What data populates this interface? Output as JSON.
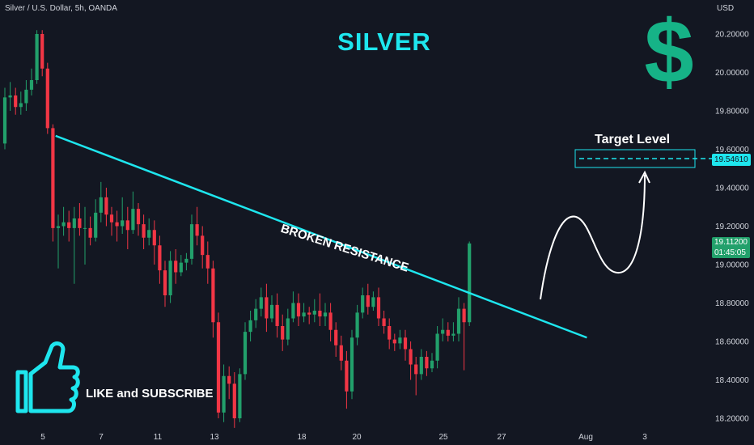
{
  "header": {
    "symbol": "Silver / U.S. Dollar, 5h, OANDA",
    "currency": "USD"
  },
  "title": "SILVER",
  "dollar_sign": "$",
  "annotations": {
    "target_label": "Target Level",
    "resistance_label": "BROKEN RESISTANCE",
    "like_label": "LIKE and SUBSCRIBE"
  },
  "price_tags": {
    "target": "19.54610",
    "last_price": "19.11200",
    "countdown": "01:45:05"
  },
  "colors": {
    "background": "#131722",
    "bull": "#22a06b",
    "bear": "#f23645",
    "accent": "#1ee6ee",
    "dollar": "#16b387"
  },
  "chart_data": {
    "type": "candlestick",
    "ylim": [
      18.15,
      20.27
    ],
    "y_ticks": [
      "20.20000",
      "20.00000",
      "19.80000",
      "19.60000",
      "19.40000",
      "19.20000",
      "19.00000",
      "18.80000",
      "18.60000",
      "18.40000",
      "18.20000"
    ],
    "x_ticks": [
      "5",
      "7",
      "11",
      "13",
      "18",
      "20",
      "25",
      "27",
      "Aug",
      "3"
    ],
    "grid": false,
    "candles": [
      [
        19.63,
        19.87,
        19.92,
        19.6
      ],
      [
        19.87,
        19.88,
        19.95,
        19.8
      ],
      [
        19.88,
        19.82,
        19.92,
        19.78
      ],
      [
        19.82,
        19.84,
        19.9,
        19.78
      ],
      [
        19.84,
        19.91,
        19.96,
        19.8
      ],
      [
        19.91,
        19.96,
        20.02,
        19.88
      ],
      [
        19.96,
        20.2,
        20.22,
        19.94
      ],
      [
        20.2,
        20.02,
        20.22,
        19.98
      ],
      [
        20.02,
        19.71,
        20.05,
        19.68
      ],
      [
        19.71,
        19.19,
        19.73,
        19.12
      ],
      [
        19.19,
        19.2,
        19.26,
        18.98
      ],
      [
        19.2,
        19.22,
        19.3,
        19.15
      ],
      [
        19.22,
        19.19,
        19.28,
        19.12
      ],
      [
        19.19,
        19.24,
        19.3,
        18.9
      ],
      [
        19.24,
        19.19,
        19.32,
        19.15
      ],
      [
        19.19,
        19.19,
        19.3,
        19.0
      ],
      [
        19.19,
        19.14,
        19.25,
        19.1
      ],
      [
        19.14,
        19.27,
        19.34,
        19.12
      ],
      [
        19.27,
        19.35,
        19.43,
        19.22
      ],
      [
        19.35,
        19.26,
        19.4,
        19.2
      ],
      [
        19.26,
        19.22,
        19.3,
        19.15
      ],
      [
        19.22,
        19.2,
        19.28,
        19.12
      ],
      [
        19.2,
        19.23,
        19.35,
        19.16
      ],
      [
        19.23,
        19.18,
        19.3,
        19.08
      ],
      [
        19.18,
        19.29,
        19.38,
        19.16
      ],
      [
        19.29,
        19.21,
        19.32,
        19.15
      ],
      [
        19.21,
        19.14,
        19.26,
        19.08
      ],
      [
        19.14,
        19.18,
        19.24,
        19.1
      ],
      [
        19.18,
        19.1,
        19.23,
        19.0
      ],
      [
        19.1,
        18.97,
        19.15,
        18.9
      ],
      [
        18.97,
        18.84,
        19.02,
        18.78
      ],
      [
        18.84,
        19.02,
        19.07,
        18.8
      ],
      [
        19.02,
        18.96,
        19.08,
        18.9
      ],
      [
        18.96,
        19.01,
        19.05,
        18.94
      ],
      [
        19.01,
        19.03,
        19.06,
        18.97
      ],
      [
        19.03,
        19.21,
        19.26,
        19.0
      ],
      [
        19.21,
        19.15,
        19.3,
        19.1
      ],
      [
        19.15,
        19.05,
        19.2,
        18.98
      ],
      [
        19.05,
        18.98,
        19.12,
        18.9
      ],
      [
        18.98,
        18.7,
        19.02,
        18.62
      ],
      [
        18.7,
        18.23,
        18.75,
        18.2
      ],
      [
        18.23,
        18.42,
        18.48,
        18.18
      ],
      [
        18.42,
        18.38,
        18.47,
        18.3
      ],
      [
        18.38,
        18.2,
        18.44,
        18.15
      ],
      [
        18.2,
        18.43,
        18.46,
        18.18
      ],
      [
        18.43,
        18.65,
        18.7,
        18.4
      ],
      [
        18.65,
        18.71,
        18.76,
        18.6
      ],
      [
        18.71,
        18.77,
        18.82,
        18.67
      ],
      [
        18.77,
        18.83,
        18.88,
        18.73
      ],
      [
        18.83,
        18.72,
        18.9,
        18.65
      ],
      [
        18.72,
        18.79,
        18.84,
        18.7
      ],
      [
        18.79,
        18.68,
        18.85,
        18.62
      ],
      [
        18.68,
        18.61,
        18.74,
        18.55
      ],
      [
        18.61,
        18.72,
        18.77,
        18.58
      ],
      [
        18.72,
        18.8,
        18.86,
        18.7
      ],
      [
        18.8,
        18.73,
        18.85,
        18.68
      ],
      [
        18.73,
        18.75,
        18.8,
        18.7
      ],
      [
        18.75,
        18.74,
        18.78,
        18.69
      ],
      [
        18.74,
        18.76,
        18.82,
        18.7
      ],
      [
        18.76,
        18.73,
        18.85,
        18.68
      ],
      [
        18.73,
        18.75,
        18.8,
        18.68
      ],
      [
        18.75,
        18.66,
        18.8,
        18.6
      ],
      [
        18.66,
        18.58,
        18.7,
        18.52
      ],
      [
        18.58,
        18.5,
        18.63,
        18.45
      ],
      [
        18.5,
        18.34,
        18.55,
        18.25
      ],
      [
        18.34,
        18.62,
        18.66,
        18.3
      ],
      [
        18.62,
        18.75,
        18.79,
        18.58
      ],
      [
        18.75,
        18.84,
        18.88,
        18.72
      ],
      [
        18.84,
        18.78,
        18.9,
        18.74
      ],
      [
        18.78,
        18.83,
        18.86,
        18.76
      ],
      [
        18.83,
        18.72,
        18.88,
        18.68
      ],
      [
        18.72,
        18.68,
        18.76,
        18.64
      ],
      [
        18.68,
        18.61,
        18.72,
        18.56
      ],
      [
        18.61,
        18.59,
        18.64,
        18.55
      ],
      [
        18.59,
        18.62,
        18.66,
        18.56
      ],
      [
        18.62,
        18.56,
        18.66,
        18.5
      ],
      [
        18.56,
        18.48,
        18.6,
        18.4
      ],
      [
        18.48,
        18.43,
        18.52,
        18.32
      ],
      [
        18.43,
        18.52,
        18.56,
        18.4
      ],
      [
        18.52,
        18.46,
        18.55,
        18.42
      ],
      [
        18.46,
        18.5,
        18.54,
        18.44
      ],
      [
        18.5,
        18.64,
        18.68,
        18.46
      ],
      [
        18.64,
        18.66,
        18.72,
        18.6
      ],
      [
        18.66,
        18.63,
        18.7,
        18.6
      ],
      [
        18.63,
        18.64,
        18.7,
        18.6
      ],
      [
        18.64,
        18.77,
        18.83,
        18.6
      ],
      [
        18.77,
        18.7,
        18.8,
        18.45
      ],
      [
        18.7,
        19.11,
        19.12,
        18.68
      ]
    ],
    "lines": [
      {
        "name": "broken-resistance",
        "points": [
          [
            9.5,
            19.67
          ],
          [
            109,
            18.62
          ]
        ]
      }
    ],
    "target_level": 19.5461,
    "last_price": 19.112
  }
}
